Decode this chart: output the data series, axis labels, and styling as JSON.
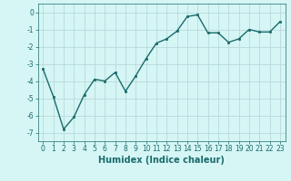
{
  "x": [
    0,
    1,
    2,
    3,
    4,
    5,
    6,
    7,
    8,
    9,
    10,
    11,
    12,
    13,
    14,
    15,
    16,
    17,
    18,
    19,
    20,
    21,
    22,
    23
  ],
  "y": [
    -3.3,
    -4.9,
    -6.8,
    -6.1,
    -4.8,
    -3.9,
    -4.0,
    -3.5,
    -4.6,
    -3.7,
    -2.7,
    -1.8,
    -1.55,
    -1.1,
    -0.25,
    -0.15,
    -1.2,
    -1.2,
    -1.75,
    -1.55,
    -1.0,
    -1.15,
    -1.15,
    -0.55
  ],
  "xlim": [
    -0.5,
    23.5
  ],
  "ylim": [
    -7.5,
    0.5
  ],
  "yticks": [
    0,
    -1,
    -2,
    -3,
    -4,
    -5,
    -6,
    -7
  ],
  "xticks": [
    0,
    1,
    2,
    3,
    4,
    5,
    6,
    7,
    8,
    9,
    10,
    11,
    12,
    13,
    14,
    15,
    16,
    17,
    18,
    19,
    20,
    21,
    22,
    23
  ],
  "xlabel": "Humidex (Indice chaleur)",
  "line_color": "#1a6b6b",
  "marker": "s",
  "marker_size": 2.0,
  "line_width": 1.0,
  "bg_color": "#d6f5f5",
  "grid_color": "#b8dada",
  "tick_label_fontsize": 5.5,
  "xlabel_fontsize": 7.0
}
